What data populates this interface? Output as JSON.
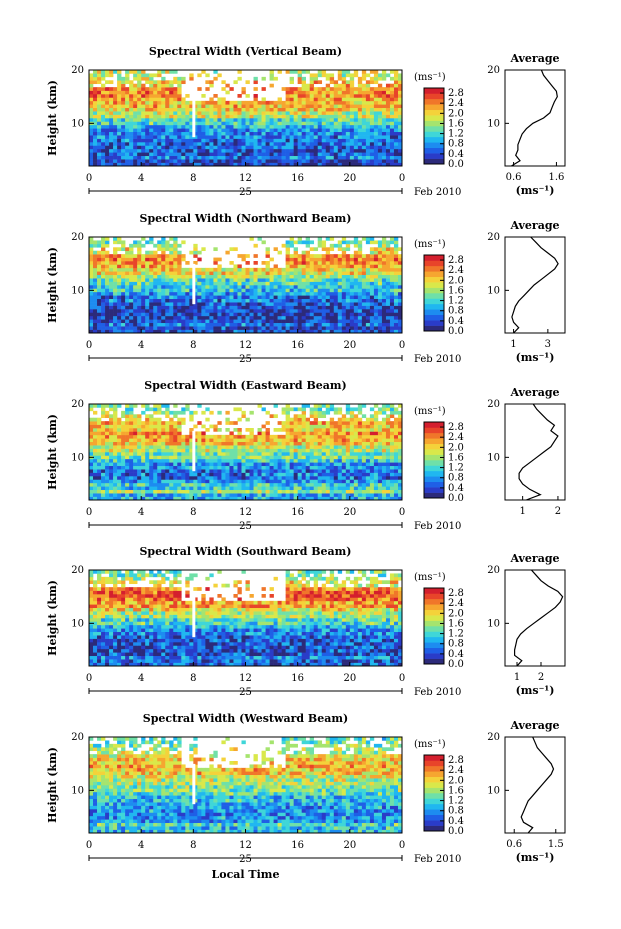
{
  "chart_data": [
    {
      "type": "heatmap",
      "title": "Spectral Width (Vertical Beam)",
      "ylabel": "Height (km)",
      "ylim": [
        2,
        20
      ],
      "yticks": [
        "10",
        "20"
      ],
      "xlim": [
        0,
        24
      ],
      "xticks": [
        "0",
        "4",
        "8",
        "12",
        "16",
        "20",
        "0"
      ],
      "day_label": "25",
      "date_label": "Feb 2010",
      "colorbar": {
        "unit": "(ms⁻¹)",
        "ticks": [
          "2.8",
          "2.4",
          "2.0",
          "1.6",
          "1.2",
          "0.8",
          "0.4",
          "0.0"
        ],
        "range": [
          0.0,
          3.0
        ]
      },
      "average": {
        "title": "Average",
        "xlabel": "(ms⁻¹)",
        "xticks": [
          "0.6",
          "1.6"
        ],
        "xlim": [
          0.4,
          1.8
        ],
        "profile": [
          {
            "h": 2,
            "v": 0.55
          },
          {
            "h": 3,
            "v": 0.75
          },
          {
            "h": 4,
            "v": 0.65
          },
          {
            "h": 5,
            "v": 0.7
          },
          {
            "h": 6,
            "v": 0.7
          },
          {
            "h": 7,
            "v": 0.75
          },
          {
            "h": 8,
            "v": 0.8
          },
          {
            "h": 9,
            "v": 0.9
          },
          {
            "h": 10,
            "v": 1.05
          },
          {
            "h": 11,
            "v": 1.3
          },
          {
            "h": 12,
            "v": 1.45
          },
          {
            "h": 13,
            "v": 1.5
          },
          {
            "h": 14,
            "v": 1.55
          },
          {
            "h": 15,
            "v": 1.62
          },
          {
            "h": 16,
            "v": 1.6
          },
          {
            "h": 17,
            "v": 1.5
          },
          {
            "h": 18,
            "v": 1.4
          },
          {
            "h": 19,
            "v": 1.3
          },
          {
            "h": 20,
            "v": 1.25
          }
        ]
      }
    },
    {
      "type": "heatmap",
      "title": "Spectral Width (Northward Beam)",
      "ylabel": "Height (km)",
      "ylim": [
        2,
        20
      ],
      "yticks": [
        "10",
        "20"
      ],
      "xlim": [
        0,
        24
      ],
      "xticks": [
        "0",
        "4",
        "8",
        "12",
        "16",
        "20",
        "0"
      ],
      "day_label": "25",
      "date_label": "Feb 2010",
      "colorbar": {
        "unit": "(ms⁻¹)",
        "ticks": [
          "2.8",
          "2.4",
          "2.0",
          "1.6",
          "1.2",
          "0.8",
          "0.4",
          "0.0"
        ],
        "range": [
          0.0,
          3.0
        ]
      },
      "average": {
        "title": "Average",
        "xlabel": "(ms⁻¹)",
        "xticks": [
          "1",
          "3"
        ],
        "xlim": [
          0.5,
          4.0
        ],
        "profile": [
          {
            "h": 2,
            "v": 1.0
          },
          {
            "h": 3,
            "v": 1.3
          },
          {
            "h": 4,
            "v": 1.0
          },
          {
            "h": 5,
            "v": 0.9
          },
          {
            "h": 6,
            "v": 1.0
          },
          {
            "h": 7,
            "v": 1.1
          },
          {
            "h": 8,
            "v": 1.3
          },
          {
            "h": 9,
            "v": 1.6
          },
          {
            "h": 10,
            "v": 1.9
          },
          {
            "h": 11,
            "v": 2.2
          },
          {
            "h": 12,
            "v": 2.6
          },
          {
            "h": 13,
            "v": 3.0
          },
          {
            "h": 14,
            "v": 3.4
          },
          {
            "h": 15,
            "v": 3.6
          },
          {
            "h": 16,
            "v": 3.4
          },
          {
            "h": 17,
            "v": 3.0
          },
          {
            "h": 18,
            "v": 2.6
          },
          {
            "h": 19,
            "v": 2.3
          },
          {
            "h": 20,
            "v": 2.0
          }
        ]
      }
    },
    {
      "type": "heatmap",
      "title": "Spectral Width (Eastward Beam)",
      "ylabel": "Height (km)",
      "ylim": [
        2,
        20
      ],
      "yticks": [
        "10",
        "20"
      ],
      "xlim": [
        0,
        24
      ],
      "xticks": [
        "0",
        "4",
        "8",
        "12",
        "16",
        "20",
        "0"
      ],
      "day_label": "25",
      "date_label": "Feb 2010",
      "colorbar": {
        "unit": "(ms⁻¹)",
        "ticks": [
          "2.8",
          "2.4",
          "2.0",
          "1.6",
          "1.2",
          "0.8",
          "0.4",
          "0.0"
        ],
        "range": [
          0.0,
          3.0
        ]
      },
      "average": {
        "title": "Average",
        "xlabel": "",
        "xticks": [
          "1",
          "2"
        ],
        "xlim": [
          0.5,
          2.2
        ],
        "profile": [
          {
            "h": 2,
            "v": 1.1
          },
          {
            "h": 3,
            "v": 1.5
          },
          {
            "h": 4,
            "v": 1.2
          },
          {
            "h": 5,
            "v": 1.0
          },
          {
            "h": 6,
            "v": 0.9
          },
          {
            "h": 7,
            "v": 0.9
          },
          {
            "h": 8,
            "v": 1.0
          },
          {
            "h": 9,
            "v": 1.2
          },
          {
            "h": 10,
            "v": 1.4
          },
          {
            "h": 11,
            "v": 1.6
          },
          {
            "h": 12,
            "v": 1.8
          },
          {
            "h": 13,
            "v": 1.9
          },
          {
            "h": 14,
            "v": 2.0
          },
          {
            "h": 15,
            "v": 1.8
          },
          {
            "h": 16,
            "v": 1.9
          },
          {
            "h": 17,
            "v": 1.7
          },
          {
            "h": 18,
            "v": 1.55
          },
          {
            "h": 19,
            "v": 1.4
          },
          {
            "h": 20,
            "v": 1.3
          }
        ]
      }
    },
    {
      "type": "heatmap",
      "title": "Spectral Width (Southward Beam)",
      "ylabel": "Height (km)",
      "ylim": [
        2,
        20
      ],
      "yticks": [
        "10",
        "20"
      ],
      "xlim": [
        0,
        24
      ],
      "xticks": [
        "0",
        "4",
        "8",
        "12",
        "16",
        "20",
        "0"
      ],
      "day_label": "25",
      "date_label": "Feb 2010",
      "colorbar": {
        "unit": "(ms⁻¹)",
        "ticks": [
          "2.8",
          "2.4",
          "2.0",
          "1.6",
          "1.2",
          "0.8",
          "0.4",
          "0.0"
        ],
        "range": [
          0.0,
          3.0
        ]
      },
      "average": {
        "title": "Average",
        "xlabel": "(ms⁻¹)",
        "xticks": [
          "1",
          "2"
        ],
        "xlim": [
          0.5,
          3.0
        ],
        "profile": [
          {
            "h": 2,
            "v": 1.0
          },
          {
            "h": 3,
            "v": 1.2
          },
          {
            "h": 4,
            "v": 0.9
          },
          {
            "h": 5,
            "v": 0.9
          },
          {
            "h": 6,
            "v": 0.95
          },
          {
            "h": 7,
            "v": 1.0
          },
          {
            "h": 8,
            "v": 1.15
          },
          {
            "h": 9,
            "v": 1.4
          },
          {
            "h": 10,
            "v": 1.7
          },
          {
            "h": 11,
            "v": 2.0
          },
          {
            "h": 12,
            "v": 2.3
          },
          {
            "h": 13,
            "v": 2.6
          },
          {
            "h": 14,
            "v": 2.8
          },
          {
            "h": 15,
            "v": 2.9
          },
          {
            "h": 16,
            "v": 2.7
          },
          {
            "h": 17,
            "v": 2.3
          },
          {
            "h": 18,
            "v": 2.0
          },
          {
            "h": 19,
            "v": 1.8
          },
          {
            "h": 20,
            "v": 1.6
          }
        ]
      }
    },
    {
      "type": "heatmap",
      "title": "Spectral Width (Westward Beam)",
      "ylabel": "Height (km)",
      "ylim": [
        2,
        20
      ],
      "yticks": [
        "10",
        "20"
      ],
      "xlim": [
        0,
        24
      ],
      "xticks": [
        "0",
        "4",
        "8",
        "12",
        "16",
        "20",
        "0"
      ],
      "day_label": "25",
      "date_label": "Feb 2010",
      "xlabel": "Local Time",
      "colorbar": {
        "unit": "(ms⁻¹)",
        "ticks": [
          "2.8",
          "2.4",
          "2.0",
          "1.6",
          "1.2",
          "0.8",
          "0.4",
          "0.0"
        ],
        "range": [
          0.0,
          3.0
        ]
      },
      "average": {
        "title": "Average",
        "xlabel": "(ms⁻¹)",
        "xticks": [
          "0.6",
          "1.5"
        ],
        "xlim": [
          0.4,
          1.7
        ],
        "profile": [
          {
            "h": 2,
            "v": 0.9
          },
          {
            "h": 3,
            "v": 1.0
          },
          {
            "h": 4,
            "v": 0.8
          },
          {
            "h": 5,
            "v": 0.75
          },
          {
            "h": 6,
            "v": 0.8
          },
          {
            "h": 7,
            "v": 0.85
          },
          {
            "h": 8,
            "v": 0.9
          },
          {
            "h": 9,
            "v": 1.0
          },
          {
            "h": 10,
            "v": 1.1
          },
          {
            "h": 11,
            "v": 1.2
          },
          {
            "h": 12,
            "v": 1.3
          },
          {
            "h": 13,
            "v": 1.4
          },
          {
            "h": 14,
            "v": 1.45
          },
          {
            "h": 15,
            "v": 1.4
          },
          {
            "h": 16,
            "v": 1.3
          },
          {
            "h": 17,
            "v": 1.2
          },
          {
            "h": 18,
            "v": 1.1
          },
          {
            "h": 19,
            "v": 1.05
          },
          {
            "h": 20,
            "v": 1.0
          }
        ]
      }
    }
  ]
}
